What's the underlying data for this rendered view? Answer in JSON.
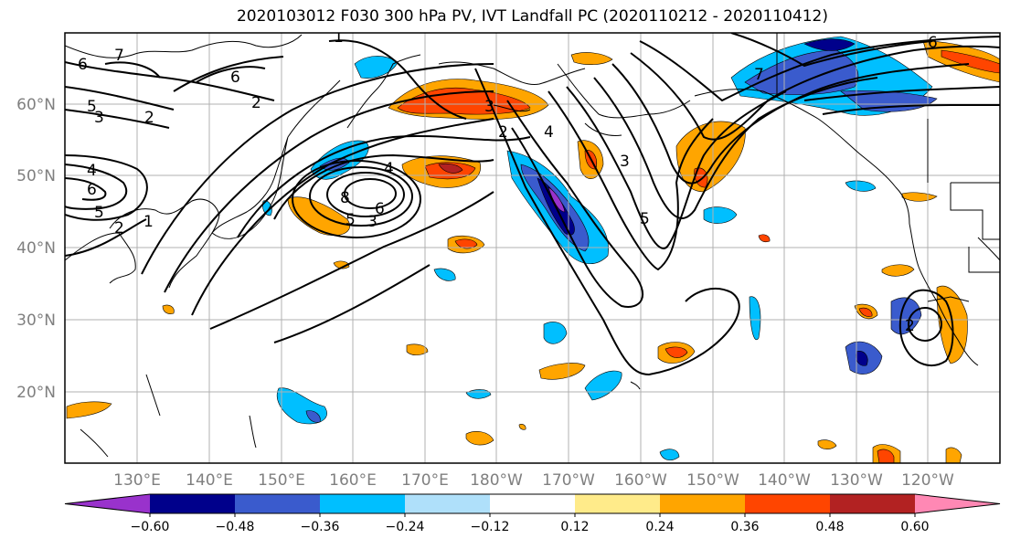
{
  "title": "2020103012 F030 300 hPa PV, IVT Landfall PC (2020110212 - 2020110412)",
  "lat_ticks": [
    "60°N",
    "50°N",
    "40°N",
    "30°N",
    "20°N"
  ],
  "lon_ticks": [
    "130°E",
    "140°E",
    "150°E",
    "160°E",
    "170°E",
    "180°W",
    "170°W",
    "160°W",
    "150°W",
    "140°W",
    "130°W",
    "120°W"
  ],
  "colorbar": {
    "colors": [
      "#9932cc",
      "#00008b",
      "#3a5bcd",
      "#00bfff",
      "#afe0fa",
      "#ffffff",
      "#ffeb8a",
      "#ffa500",
      "#ff4500",
      "#b22222",
      "#ff88b4"
    ],
    "labels": [
      "−0.60",
      "−0.48",
      "−0.36",
      "−0.24",
      "−0.12",
      "0.12",
      "0.24",
      "0.36",
      "0.48",
      "0.60"
    ]
  },
  "contour_labels": [
    "6",
    "5",
    "3",
    "2",
    "7",
    "6",
    "4",
    "6",
    "5",
    "2",
    "1",
    "8",
    "6",
    "5",
    "3",
    "2",
    "4",
    "3",
    "2",
    "1",
    "4",
    "3",
    "5",
    "7",
    "6",
    "2"
  ]
}
